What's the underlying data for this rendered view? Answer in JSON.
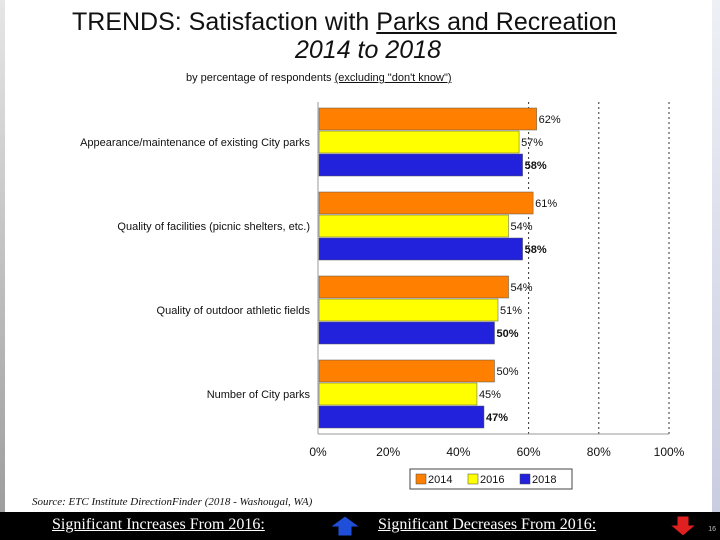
{
  "slide": {
    "title_prefix": "TRENDS:  Satisfaction with ",
    "title_underlined": "Parks and Recreation",
    "title_line2": "2014 to 2018",
    "subtitle_prefix": "by percentage of respondents ",
    "subtitle_underlined": "(excluding \"don't know\")",
    "source": "Source:  ETC Institute DirectionFinder (2018 - Washougal, WA)",
    "footer_increase": "Significant Increases From 2016:",
    "footer_decrease": "Significant Decreases From 2016:",
    "page_number": "16"
  },
  "colors": {
    "2014": "#ff8000",
    "2016": "#ffff00",
    "2018": "#2222dd",
    "increase_arrow": "#1f4fd8",
    "decrease_arrow": "#e02020"
  },
  "chart_data": {
    "type": "bar",
    "orientation": "horizontal",
    "categories": [
      "Appearance/maintenance of existing City parks",
      "Quality of facilities (picnic shelters, etc.)",
      "Quality of outdoor athletic fields",
      "Number of City parks"
    ],
    "series": [
      {
        "name": "2014",
        "values": [
          62,
          61,
          54,
          50
        ],
        "labels": [
          "62%",
          "61%",
          "54%",
          "50%"
        ]
      },
      {
        "name": "2016",
        "values": [
          57,
          54,
          51,
          45
        ],
        "labels": [
          "57%",
          "54%",
          "51%",
          "45%"
        ]
      },
      {
        "name": "2018",
        "values": [
          58,
          58,
          50,
          47
        ],
        "labels": [
          "58%",
          "58%",
          "50%",
          "47%"
        ]
      }
    ],
    "xlim": [
      0,
      100
    ],
    "xticks": [
      "0%",
      "20%",
      "40%",
      "60%",
      "80%",
      "100%"
    ],
    "grid": "dotted vertical",
    "legend_position": "bottom-right"
  }
}
